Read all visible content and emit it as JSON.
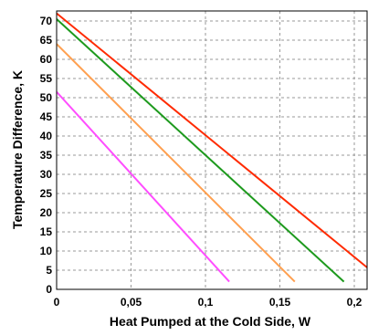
{
  "chart_data": {
    "type": "line",
    "title": "",
    "xlabel": "Heat Pumped at the Cold Side, W",
    "ylabel": "Temperature Difference, K",
    "xlim": [
      0,
      0.21
    ],
    "ylim": [
      0,
      72
    ],
    "x_ticks": [
      0,
      0.05,
      0.1,
      0.15,
      0.2
    ],
    "x_tick_labels": [
      "0",
      "0,05",
      "0,1",
      "0,15",
      "0,2"
    ],
    "y_ticks": [
      0,
      5,
      10,
      15,
      20,
      25,
      30,
      35,
      40,
      45,
      50,
      55,
      60,
      65,
      70
    ],
    "y_tick_labels": [
      "0",
      "5",
      "10",
      "15",
      "20",
      "25",
      "30",
      "35",
      "40",
      "45",
      "50",
      "55",
      "60",
      "65",
      "70"
    ],
    "grid": true,
    "legend": "none",
    "series": [
      {
        "color": "#ff2a00",
        "x": [
          0,
          0.214
        ],
        "y": [
          72,
          4
        ]
      },
      {
        "color": "#1e9a1e",
        "x": [
          0,
          0.193
        ],
        "y": [
          70.5,
          2
        ]
      },
      {
        "color": "#ffa050",
        "x": [
          0,
          0.16
        ],
        "y": [
          64,
          2
        ]
      },
      {
        "color": "#ff4dff",
        "x": [
          0,
          0.116
        ],
        "y": [
          51.5,
          2
        ]
      }
    ]
  }
}
